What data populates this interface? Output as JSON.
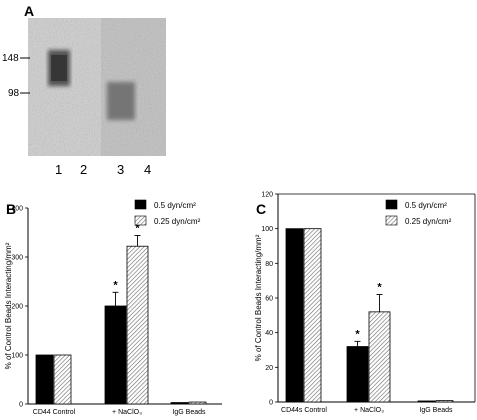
{
  "panel_a": {
    "letter": "A",
    "mw_markers": [
      "148",
      "98"
    ],
    "lane_labels": [
      "1",
      "2",
      "3",
      "4"
    ]
  },
  "chart_data": [
    {
      "type": "bar",
      "panel": "B",
      "ylabel": "% of Control Beads Interacting/mm²",
      "ylim": [
        0,
        400
      ],
      "yticks": [
        0,
        100,
        200,
        300,
        400
      ],
      "categories": [
        "CD44 Control",
        "+ NaClO₃",
        "IgG Beads"
      ],
      "series": [
        {
          "name": "0.5 dyn/cm²",
          "values": [
            100,
            200,
            3
          ],
          "errors": [
            0,
            28,
            0
          ],
          "significance": [
            "",
            "*",
            ""
          ],
          "color": "#000000"
        },
        {
          "name": "0.25 dyn/cm²",
          "values": [
            100,
            322,
            4
          ],
          "errors": [
            0,
            22,
            0
          ],
          "significance": [
            "",
            "*",
            ""
          ],
          "color": "hatched"
        }
      ],
      "legend": "top-right"
    },
    {
      "type": "bar",
      "panel": "C",
      "ylabel": "% of Control Beads Interacting/mm²",
      "ylim": [
        0,
        120
      ],
      "yticks": [
        0,
        20,
        40,
        60,
        80,
        100,
        120
      ],
      "categories": [
        "CD44s Control",
        "+ NaClO₃",
        "IgG Beads"
      ],
      "series": [
        {
          "name": "0.5 dyn/cm²",
          "values": [
            100,
            32,
            0.6
          ],
          "errors": [
            0,
            3,
            0
          ],
          "significance": [
            "",
            "*",
            ""
          ],
          "color": "#000000"
        },
        {
          "name": "0.25 dyn/cm²",
          "values": [
            100,
            52,
            0.8
          ],
          "errors": [
            0,
            10,
            0
          ],
          "significance": [
            "",
            "*",
            ""
          ],
          "color": "hatched"
        }
      ],
      "legend": "top-right"
    }
  ]
}
